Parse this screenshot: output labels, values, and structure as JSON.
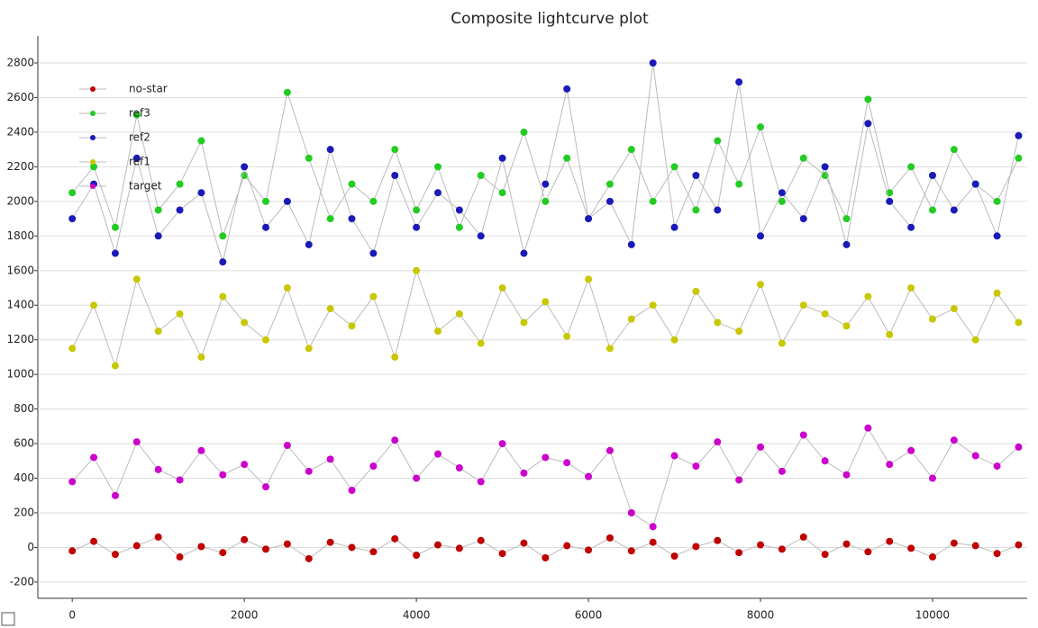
{
  "chart_data": {
    "type": "scatter",
    "title": "Composite lightcurve plot",
    "x": [
      0,
      250,
      500,
      750,
      1000,
      1250,
      1500,
      1750,
      2000,
      2250,
      2500,
      2750,
      3000,
      3250,
      3500,
      3750,
      4000,
      4250,
      4500,
      4750,
      5000,
      5250,
      5500,
      5750,
      6000,
      6250,
      6500,
      6750,
      7000,
      7250,
      7500,
      7750,
      8000,
      8250,
      8500,
      8750,
      9000,
      9250,
      9500,
      9750,
      10000,
      10250,
      10500,
      10750,
      11000
    ],
    "series": [
      {
        "name": "ref3",
        "color": "#22cc22",
        "values": [
          2050,
          2200,
          1850,
          2500,
          1950,
          2100,
          2350,
          1800,
          2150,
          2000,
          2630,
          2250,
          1900,
          2100,
          2000,
          2300,
          1950,
          2200,
          1850,
          2150,
          2050,
          2400,
          2000,
          2250,
          1900,
          2100,
          2300,
          2000,
          2200,
          1950,
          2350,
          2100,
          2430,
          2000,
          2250,
          2150,
          1900,
          2590,
          2050,
          2200,
          1950,
          2300,
          2100,
          2000,
          2250
        ]
      },
      {
        "name": "ref2",
        "color": "#1a1ab8",
        "values": [
          1900,
          2100,
          1700,
          2250,
          1800,
          1950,
          2050,
          1650,
          2200,
          1850,
          2000,
          1750,
          2300,
          1900,
          1700,
          2150,
          1850,
          2050,
          1950,
          1800,
          2250,
          1700,
          2100,
          2650,
          1900,
          2000,
          1750,
          2800,
          1850,
          2150,
          1950,
          2690,
          1800,
          2050,
          1900,
          2200,
          1750,
          2450,
          2000,
          1850,
          2150,
          1950,
          2100,
          1800,
          2380
        ]
      },
      {
        "name": "ref1",
        "color": "#c8c800",
        "values": [
          1150,
          1400,
          1050,
          1550,
          1250,
          1350,
          1100,
          1450,
          1300,
          1200,
          1500,
          1150,
          1380,
          1280,
          1450,
          1100,
          1600,
          1250,
          1350,
          1180,
          1500,
          1300,
          1420,
          1220,
          1550,
          1150,
          1320,
          1400,
          1200,
          1480,
          1300,
          1250,
          1520,
          1180,
          1400,
          1350,
          1280,
          1450,
          1230,
          1500,
          1320,
          1380,
          1200,
          1470,
          1300
        ]
      },
      {
        "name": "target",
        "color": "#cc00cc",
        "values": [
          380,
          520,
          300,
          610,
          450,
          390,
          560,
          420,
          480,
          350,
          590,
          440,
          510,
          330,
          470,
          620,
          400,
          540,
          460,
          380,
          600,
          430,
          520,
          490,
          410,
          560,
          200,
          120,
          530,
          470,
          610,
          390,
          580,
          440,
          650,
          500,
          420,
          690,
          480,
          560,
          400,
          620,
          530,
          470,
          580
        ]
      },
      {
        "name": "no-star",
        "color": "#c00000",
        "values": [
          -20,
          35,
          -40,
          10,
          60,
          -55,
          5,
          -30,
          45,
          -10,
          20,
          -65,
          30,
          0,
          -25,
          50,
          -45,
          15,
          -5,
          40,
          -35,
          25,
          -60,
          10,
          -15,
          55,
          -20,
          30,
          -50,
          5,
          40,
          -30,
          15,
          -10,
          60,
          -40,
          20,
          -25,
          35,
          -5,
          -55,
          25,
          10,
          -35,
          15
        ]
      }
    ],
    "legend_order": [
      4,
      0,
      1,
      2,
      3
    ],
    "xlim": [
      -400,
      11100
    ],
    "ylim": [
      -294,
      2956
    ],
    "xticks": [
      0,
      2000,
      4000,
      6000,
      8000,
      10000
    ],
    "yticks": [
      -200,
      0,
      200,
      400,
      600,
      800,
      1000,
      1200,
      1400,
      1600,
      1800,
      2000,
      2200,
      2400,
      2600,
      2800
    ],
    "grid": true,
    "legend": "upper left"
  }
}
